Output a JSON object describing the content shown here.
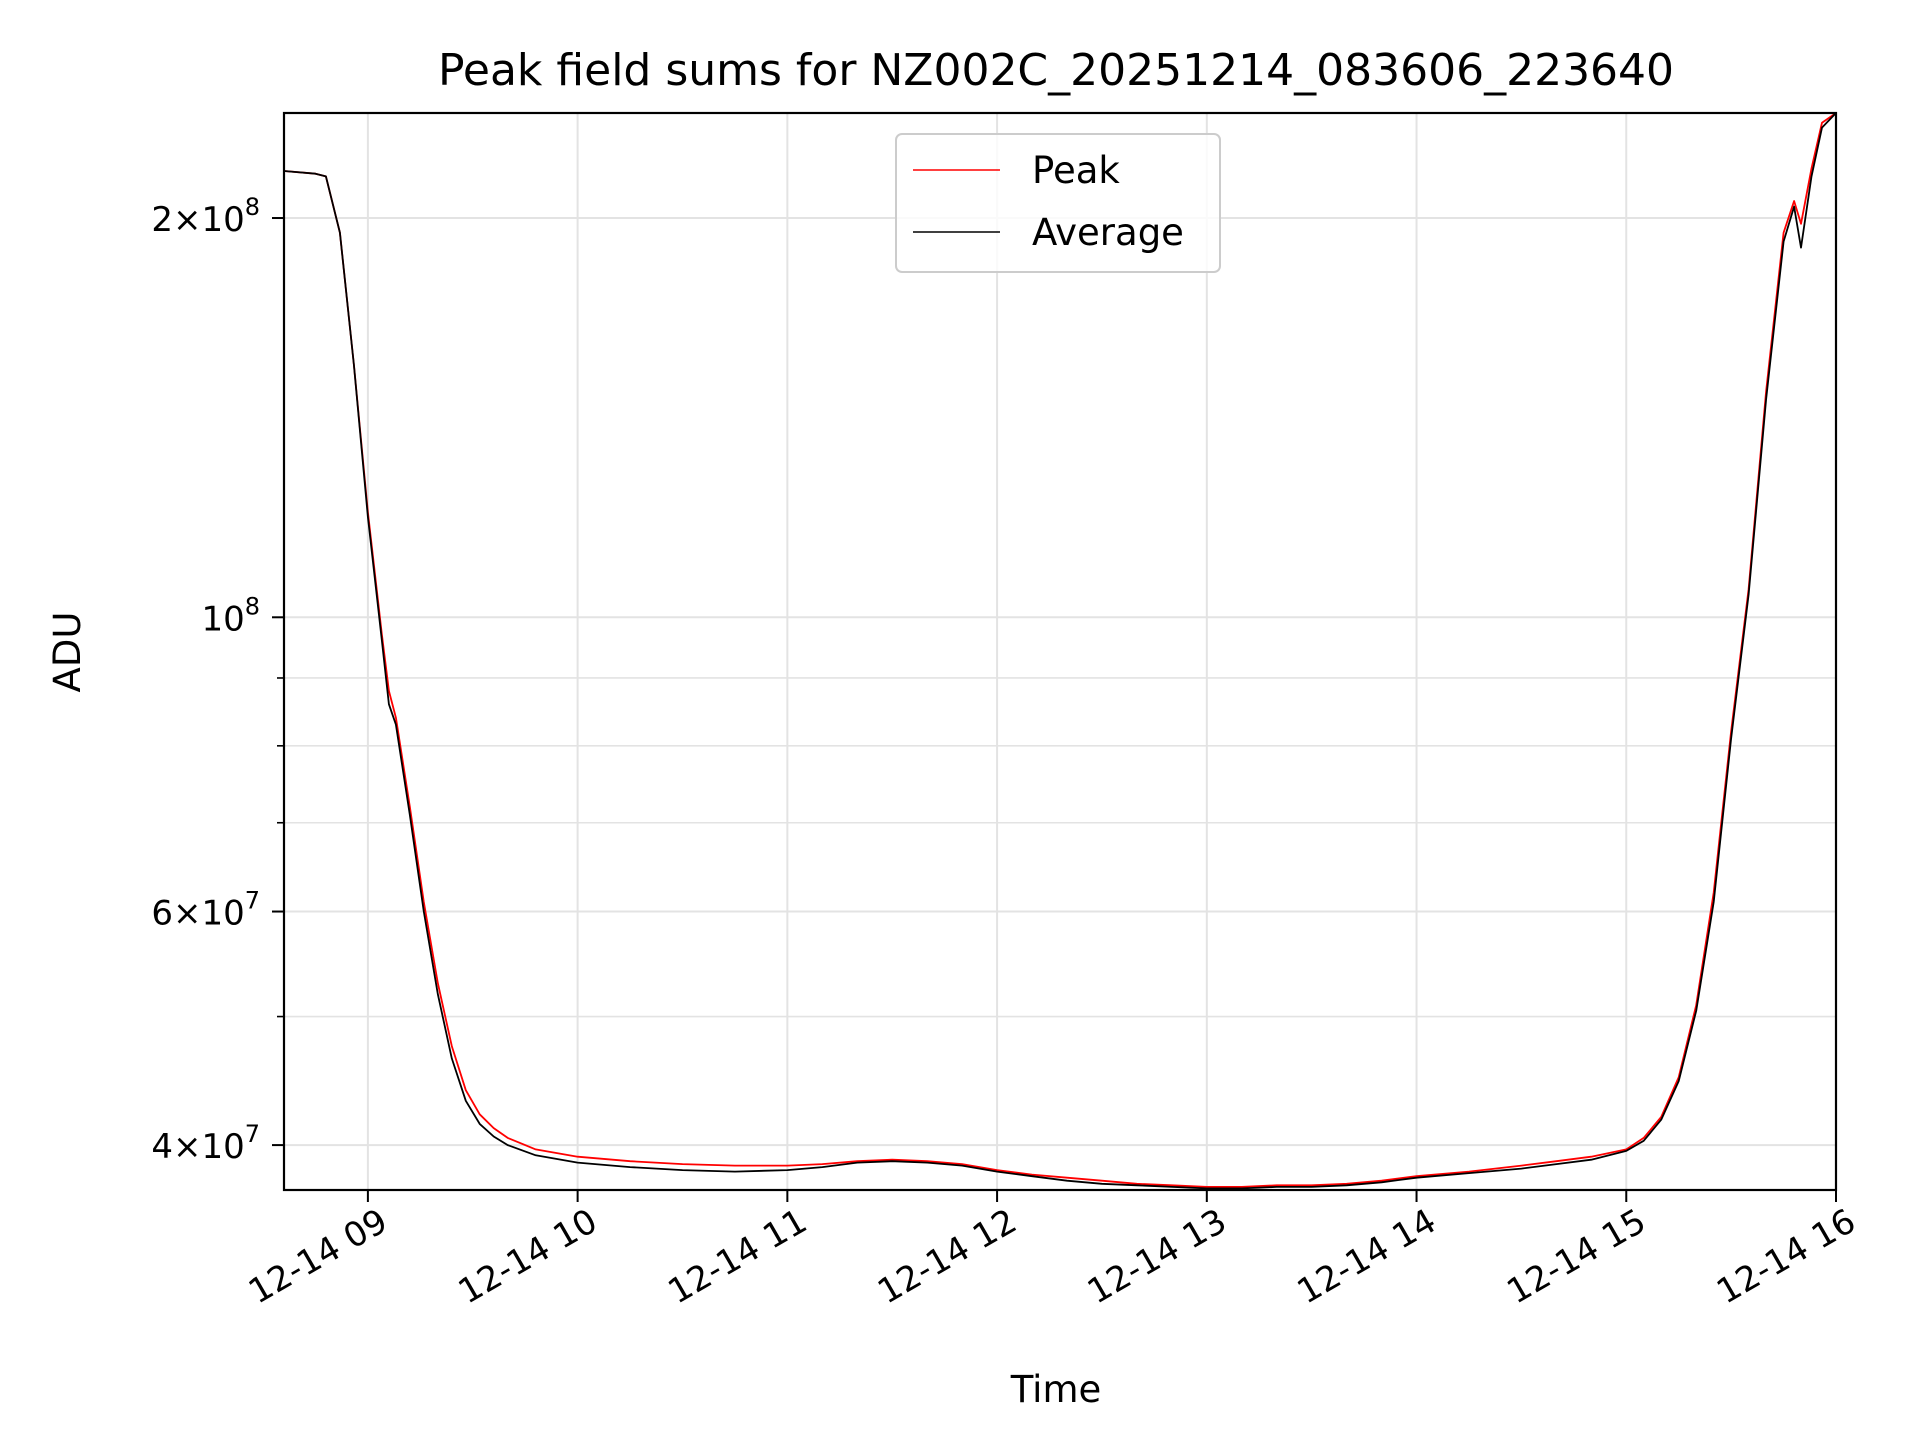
{
  "chart_data": {
    "type": "line",
    "title": "Peak field sums for NZ002C_20251214_083606_223640",
    "xlabel": "Time",
    "ylabel": "ADU",
    "yscale": "log",
    "xlim": [
      "2025-12-14 08:36",
      "2025-12-14 16:00"
    ],
    "ylim": [
      37000000,
      240000000
    ],
    "x_ticks": [
      {
        "value": "2025-12-14 09:00",
        "label": "12-14 09"
      },
      {
        "value": "2025-12-14 10:00",
        "label": "12-14 10"
      },
      {
        "value": "2025-12-14 11:00",
        "label": "12-14 11"
      },
      {
        "value": "2025-12-14 12:00",
        "label": "12-14 12"
      },
      {
        "value": "2025-12-14 13:00",
        "label": "12-14 13"
      },
      {
        "value": "2025-12-14 14:00",
        "label": "12-14 14"
      },
      {
        "value": "2025-12-14 15:00",
        "label": "12-14 15"
      },
      {
        "value": "2025-12-14 16:00",
        "label": "12-14 16"
      }
    ],
    "y_ticks": [
      {
        "value": 40000000,
        "mantissa": "4",
        "exponent": "7"
      },
      {
        "value": 60000000,
        "mantissa": "6",
        "exponent": "7"
      },
      {
        "value": 100000000,
        "mantissa": "",
        "exponent": "8"
      },
      {
        "value": 200000000,
        "mantissa": "2",
        "exponent": "8"
      }
    ],
    "y_minor_ticks": [
      50000000,
      70000000,
      80000000,
      90000000
    ],
    "grid": true,
    "legend_position": "top-center",
    "series": [
      {
        "name": "Peak",
        "color": "#ff0000",
        "x": [
          "2025-12-14 08:36",
          "2025-12-14 08:45",
          "2025-12-14 08:48",
          "2025-12-14 08:52",
          "2025-12-14 08:56",
          "2025-12-14 09:00",
          "2025-12-14 09:04",
          "2025-12-14 09:06",
          "2025-12-14 09:08",
          "2025-12-14 09:12",
          "2025-12-14 09:16",
          "2025-12-14 09:20",
          "2025-12-14 09:24",
          "2025-12-14 09:28",
          "2025-12-14 09:32",
          "2025-12-14 09:36",
          "2025-12-14 09:40",
          "2025-12-14 09:48",
          "2025-12-14 10:00",
          "2025-12-14 10:15",
          "2025-12-14 10:30",
          "2025-12-14 10:45",
          "2025-12-14 11:00",
          "2025-12-14 11:10",
          "2025-12-14 11:20",
          "2025-12-14 11:30",
          "2025-12-14 11:40",
          "2025-12-14 11:50",
          "2025-12-14 12:00",
          "2025-12-14 12:10",
          "2025-12-14 12:20",
          "2025-12-14 12:30",
          "2025-12-14 12:40",
          "2025-12-14 12:50",
          "2025-12-14 13:00",
          "2025-12-14 13:10",
          "2025-12-14 13:20",
          "2025-12-14 13:30",
          "2025-12-14 13:40",
          "2025-12-14 13:50",
          "2025-12-14 14:00",
          "2025-12-14 14:15",
          "2025-12-14 14:30",
          "2025-12-14 14:40",
          "2025-12-14 14:50",
          "2025-12-14 15:00",
          "2025-12-14 15:05",
          "2025-12-14 15:10",
          "2025-12-14 15:15",
          "2025-12-14 15:20",
          "2025-12-14 15:25",
          "2025-12-14 15:30",
          "2025-12-14 15:35",
          "2025-12-14 15:40",
          "2025-12-14 15:45",
          "2025-12-14 15:48",
          "2025-12-14 15:50",
          "2025-12-14 15:53",
          "2025-12-14 15:56",
          "2025-12-14 16:00"
        ],
        "values": [
          217000000,
          216000000,
          215000000,
          195000000,
          155000000,
          120000000,
          97000000,
          88000000,
          84000000,
          72000000,
          61000000,
          53000000,
          47500000,
          44000000,
          42200000,
          41200000,
          40500000,
          39700000,
          39200000,
          38900000,
          38700000,
          38600000,
          38600000,
          38700000,
          38900000,
          39000000,
          38900000,
          38700000,
          38300000,
          38000000,
          37800000,
          37600000,
          37400000,
          37300000,
          37200000,
          37200000,
          37300000,
          37300000,
          37400000,
          37600000,
          37900000,
          38200000,
          38600000,
          38900000,
          39200000,
          39700000,
          40500000,
          42000000,
          45000000,
          51000000,
          62000000,
          82000000,
          105000000,
          148000000,
          195000000,
          206000000,
          198000000,
          218000000,
          236000000,
          240000000
        ]
      },
      {
        "name": "Average",
        "color": "#000000",
        "x": [
          "2025-12-14 08:36",
          "2025-12-14 08:45",
          "2025-12-14 08:48",
          "2025-12-14 08:52",
          "2025-12-14 08:56",
          "2025-12-14 09:00",
          "2025-12-14 09:04",
          "2025-12-14 09:06",
          "2025-12-14 09:08",
          "2025-12-14 09:12",
          "2025-12-14 09:16",
          "2025-12-14 09:20",
          "2025-12-14 09:24",
          "2025-12-14 09:28",
          "2025-12-14 09:32",
          "2025-12-14 09:36",
          "2025-12-14 09:40",
          "2025-12-14 09:48",
          "2025-12-14 10:00",
          "2025-12-14 10:15",
          "2025-12-14 10:30",
          "2025-12-14 10:45",
          "2025-12-14 11:00",
          "2025-12-14 11:10",
          "2025-12-14 11:20",
          "2025-12-14 11:30",
          "2025-12-14 11:40",
          "2025-12-14 11:50",
          "2025-12-14 12:00",
          "2025-12-14 12:10",
          "2025-12-14 12:20",
          "2025-12-14 12:30",
          "2025-12-14 12:40",
          "2025-12-14 12:50",
          "2025-12-14 13:00",
          "2025-12-14 13:10",
          "2025-12-14 13:20",
          "2025-12-14 13:30",
          "2025-12-14 13:40",
          "2025-12-14 13:50",
          "2025-12-14 14:00",
          "2025-12-14 14:15",
          "2025-12-14 14:30",
          "2025-12-14 14:40",
          "2025-12-14 14:50",
          "2025-12-14 15:00",
          "2025-12-14 15:05",
          "2025-12-14 15:10",
          "2025-12-14 15:15",
          "2025-12-14 15:20",
          "2025-12-14 15:25",
          "2025-12-14 15:30",
          "2025-12-14 15:35",
          "2025-12-14 15:40",
          "2025-12-14 15:45",
          "2025-12-14 15:48",
          "2025-12-14 15:50",
          "2025-12-14 15:53",
          "2025-12-14 15:56",
          "2025-12-14 16:00"
        ],
        "values": [
          217000000,
          216000000,
          215000000,
          195000000,
          155000000,
          119000000,
          96000000,
          86000000,
          83000000,
          71000000,
          60000000,
          52000000,
          46500000,
          43200000,
          41500000,
          40600000,
          40000000,
          39300000,
          38800000,
          38500000,
          38300000,
          38200000,
          38300000,
          38500000,
          38800000,
          38900000,
          38800000,
          38600000,
          38200000,
          37900000,
          37600000,
          37400000,
          37300000,
          37200000,
          37100000,
          37100000,
          37200000,
          37200000,
          37300000,
          37500000,
          37800000,
          38100000,
          38400000,
          38700000,
          39000000,
          39600000,
          40300000,
          41800000,
          44700000,
          50500000,
          61000000,
          81000000,
          104000000,
          146000000,
          192000000,
          204000000,
          190000000,
          215000000,
          234000000,
          240000000
        ]
      }
    ]
  }
}
